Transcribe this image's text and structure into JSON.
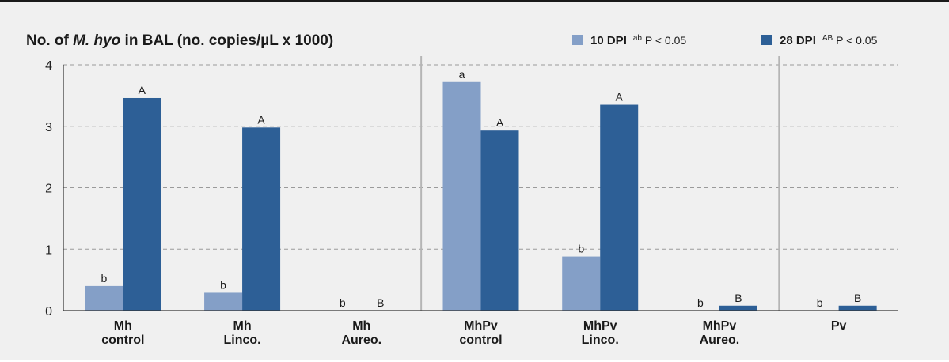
{
  "chart_data": {
    "type": "bar",
    "title_parts": [
      {
        "text": "No. of ",
        "italic": false
      },
      {
        "text": "M. hyo",
        "italic": true
      },
      {
        "text": " in BAL (no. copies/µL x 1000)",
        "italic": false
      }
    ],
    "categories": [
      [
        "Mh",
        "control"
      ],
      [
        "Mh",
        "Linco."
      ],
      [
        "Mh",
        "Aureo."
      ],
      [
        "MhPv",
        "control"
      ],
      [
        "MhPv",
        "Linco."
      ],
      [
        "MhPv",
        "Aureo."
      ],
      [
        "Pv"
      ]
    ],
    "series": [
      {
        "name": "10 DPI",
        "legend_sig_sup": "ab",
        "legend_sig_text": "P < 0.05",
        "color": "#849fc7",
        "values": [
          0.4,
          0.29,
          0,
          3.72,
          0.88,
          0,
          0
        ],
        "labels": [
          "b",
          "b",
          "b",
          "a",
          "b",
          "b",
          "b"
        ]
      },
      {
        "name": "28 DPI",
        "legend_sig_sup": "AB",
        "legend_sig_text": "P < 0.05",
        "color": "#2d5f96",
        "values": [
          3.46,
          2.98,
          0,
          2.93,
          3.35,
          0.08,
          0.08
        ],
        "labels": [
          "A",
          "A",
          "B",
          "A",
          "A",
          "B",
          "B"
        ]
      }
    ],
    "yticks": [
      "0",
      "1",
      "2",
      "3",
      "4"
    ],
    "ylim": [
      0,
      4
    ],
    "grid": true,
    "group_separators_after": [
      2,
      5
    ],
    "legend_position": "top-right"
  }
}
